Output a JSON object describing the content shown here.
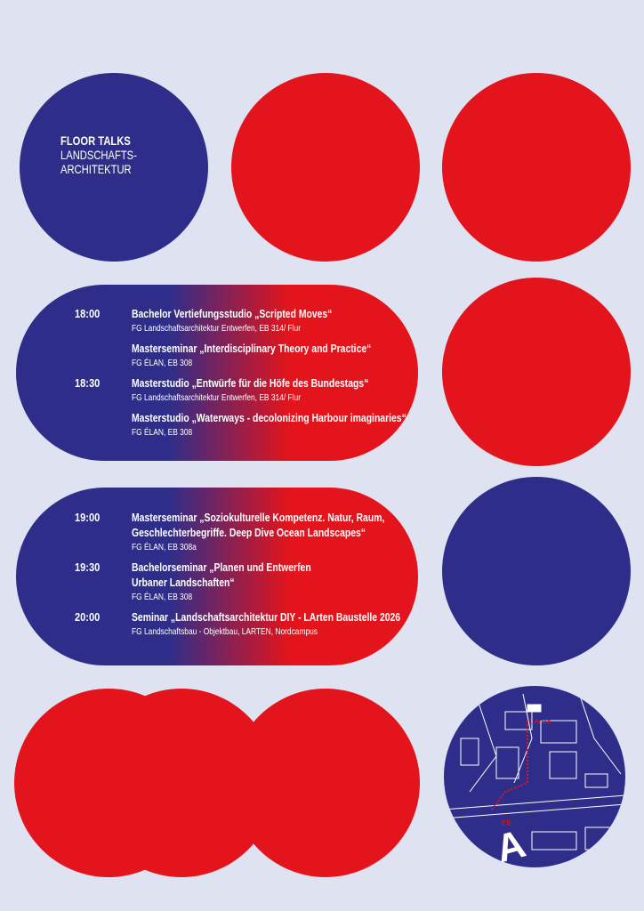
{
  "header": {
    "title": "FLOOR TALKS",
    "subtitle_lines": [
      "LANDSCHAFTS-",
      "ARCHITEKTUR"
    ]
  },
  "sessions": [
    {
      "entries": [
        {
          "time": "18:00",
          "title_lines": [
            "Bachelor Vertiefungsstudio „Scripted Moves“"
          ],
          "location": "FG Landschaftsarchitektur Entwerfen, EB 314/ Flur"
        },
        {
          "title_lines": [
            "Masterseminar „Interdisciplinary Theory and Practice“"
          ],
          "location": "FG ÉLAN, EB 308"
        },
        {
          "time": "18:30",
          "title_lines": [
            "Masterstudio „Entwürfe für die Höfe des Bundestags“"
          ],
          "location": "FG Landschaftsarchitektur Entwerfen, EB 314/ Flur"
        },
        {
          "title_lines": [
            "Masterstudio „Waterways - decolonizing Harbour imaginaries“"
          ],
          "location": "FG ÉLAN, EB 308"
        }
      ]
    },
    {
      "entries": [
        {
          "time": "19:00",
          "title_lines": [
            "Masterseminar „Soziokulturelle Kompetenz. Natur, Raum,",
            "Geschlechterbegriffe. Deep Dive Ocean Landscapes“"
          ],
          "location": "FG ÉLAN, EB 308a"
        },
        {
          "time": "19:30",
          "title_lines": [
            "Bachelorseminar „Planen und Entwerfen",
            "Urbaner Landschaften“"
          ],
          "location": "FG ÉLAN, EB 308"
        },
        {
          "time": "20:00",
          "title_lines": [
            "Seminar „Landschaftsarchitektur DIY - LArten Baustelle 2026"
          ],
          "location": "FG Landschaftsbau - Objektbau, LARTEN, Nordcampus"
        }
      ]
    }
  ],
  "map": {
    "labels": [
      "LArten",
      "EB",
      "A"
    ]
  }
}
